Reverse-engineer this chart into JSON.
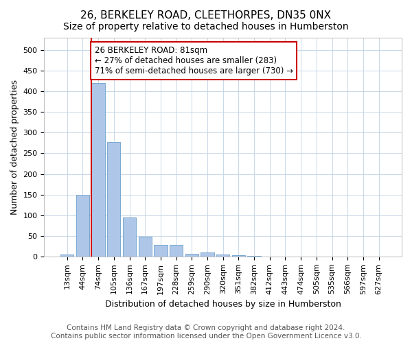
{
  "title": "26, BERKELEY ROAD, CLEETHORPES, DN35 0NX",
  "subtitle": "Size of property relative to detached houses in Humberston",
  "xlabel": "Distribution of detached houses by size in Humberston",
  "ylabel": "Number of detached properties",
  "bin_labels": [
    "13sqm",
    "44sqm",
    "74sqm",
    "105sqm",
    "136sqm",
    "167sqm",
    "197sqm",
    "228sqm",
    "259sqm",
    "290sqm",
    "320sqm",
    "351sqm",
    "382sqm",
    "412sqm",
    "443sqm",
    "474sqm",
    "505sqm",
    "535sqm",
    "566sqm",
    "597sqm",
    "627sqm"
  ],
  "bar_heights": [
    5,
    150,
    420,
    277,
    95,
    48,
    28,
    28,
    6,
    10,
    5,
    3,
    1,
    0,
    0,
    0,
    0,
    0,
    0,
    0,
    0
  ],
  "bar_color": "#aec6e8",
  "bar_edgecolor": "#7aaad0",
  "property_bin_index": 2,
  "red_line_color": "#cc0000",
  "annotation_text": "26 BERKELEY ROAD: 81sqm\n← 27% of detached houses are smaller (283)\n71% of semi-detached houses are larger (730) →",
  "annotation_box_color": "white",
  "annotation_box_edgecolor": "#cc0000",
  "ylim": [
    0,
    530
  ],
  "yticks": [
    0,
    50,
    100,
    150,
    200,
    250,
    300,
    350,
    400,
    450,
    500
  ],
  "footer_text": "Contains HM Land Registry data © Crown copyright and database right 2024.\nContains public sector information licensed under the Open Government Licence v3.0.",
  "background_color": "#ffffff",
  "grid_color": "#c8d8e8",
  "title_fontsize": 11,
  "subtitle_fontsize": 10,
  "axis_label_fontsize": 9,
  "tick_fontsize": 8,
  "annotation_fontsize": 8.5,
  "footer_fontsize": 7.5
}
